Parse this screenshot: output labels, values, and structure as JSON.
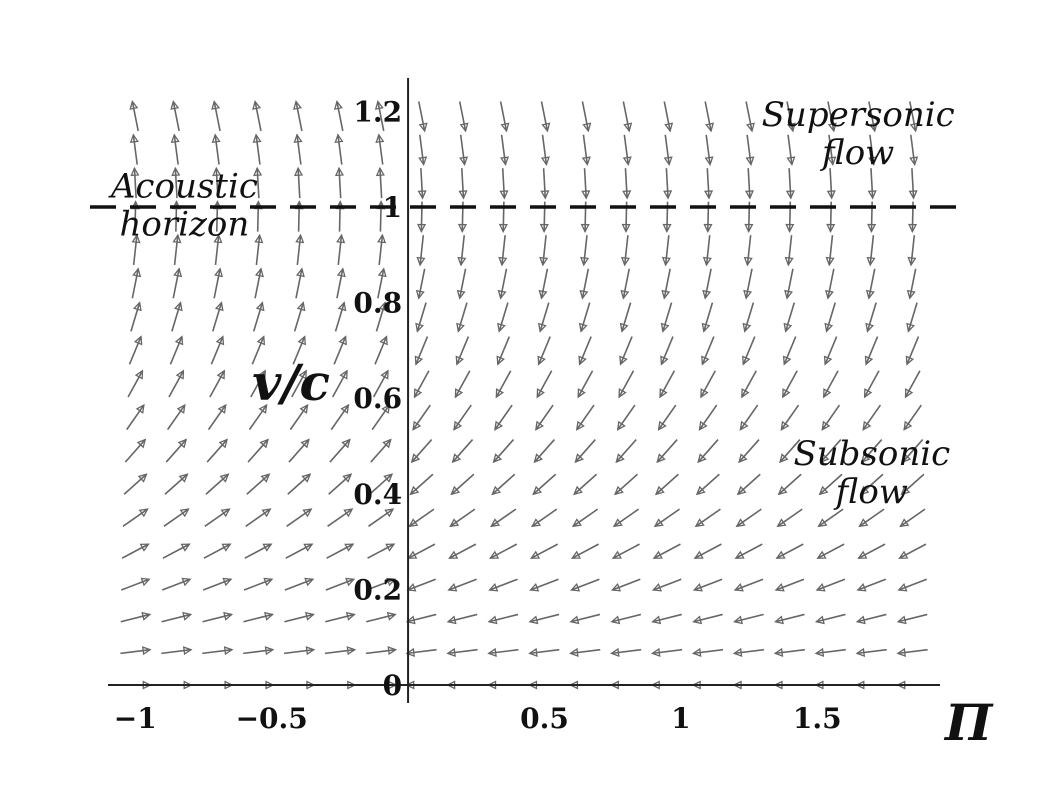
{
  "chart_data": {
    "type": "vector-field",
    "xlabel": "Π",
    "ylabel": "v/c",
    "xlim": [
      -1.1,
      1.95
    ],
    "ylim": [
      0,
      1.27
    ],
    "x_ticks": [
      {
        "value": -1,
        "label": "−1"
      },
      {
        "value": -0.5,
        "label": "−0.5"
      },
      {
        "value": 0.5,
        "label": "0.5"
      },
      {
        "value": 1,
        "label": "1"
      },
      {
        "value": 1.5,
        "label": "1.5"
      }
    ],
    "y_ticks": [
      {
        "value": 0,
        "label": "0"
      },
      {
        "value": 0.2,
        "label": "0.2"
      },
      {
        "value": 0.4,
        "label": "0.4"
      },
      {
        "value": 0.6,
        "label": "0.6"
      },
      {
        "value": 0.8,
        "label": "0.8"
      },
      {
        "value": 1,
        "label": "1"
      },
      {
        "value": 1.2,
        "label": "1.2"
      }
    ],
    "field": {
      "x_start": -1.0,
      "x_step": 0.15,
      "x_count": 20,
      "y_start": 0.0,
      "y_step": 0.07,
      "y_count": 18,
      "vector": "dPi = -Pi*(1 - y^2), dy = -Pi*y"
    },
    "reference_line": {
      "y": 1,
      "style": "dashed"
    },
    "annotations": [
      {
        "lines": [
          "Acoustic",
          "horizon"
        ],
        "x": -0.82,
        "y": 1.02
      },
      {
        "lines": [
          "Supersonic",
          "flow"
        ],
        "x": 1.65,
        "y": 1.17
      },
      {
        "lines": [
          "Subsonic",
          "flow"
        ],
        "x": 1.7,
        "y": 0.46
      }
    ],
    "grid": false,
    "colors": {
      "arrows": "#666666",
      "axes": "#222222",
      "text": "#111111"
    }
  }
}
